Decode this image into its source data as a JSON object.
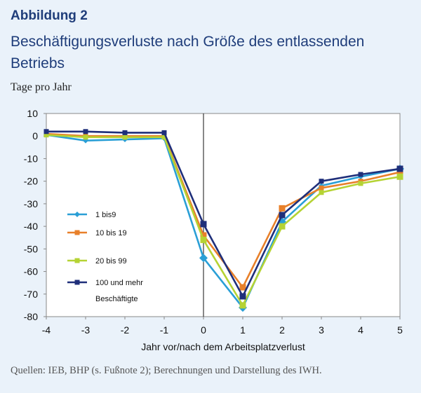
{
  "header": {
    "figure_label": "Abbildung 2",
    "title": "Beschäftigungsverluste nach Größe des entlassenden Betriebs",
    "subtitle": "Tage pro Jahr"
  },
  "footer": {
    "source": "Quellen: IEB, BHP (s. Fußnote 2); Berechnungen und Darstellung des IWH."
  },
  "colors": {
    "page_background": "#eaf2fa",
    "plot_background": "#ffffff",
    "title": "#1f3d7a"
  },
  "chart_data": {
    "type": "line",
    "title": "",
    "xlabel": "Jahr vor/nach dem Arbeitsplatzverlust",
    "ylabel": "",
    "x": [
      -4,
      -3,
      -2,
      -1,
      0,
      1,
      2,
      3,
      4,
      5
    ],
    "xlim": [
      -4,
      5
    ],
    "ylim": [
      -80,
      10
    ],
    "yticks": [
      10,
      0,
      -10,
      -20,
      -30,
      -40,
      -50,
      -60,
      -70,
      -80
    ],
    "grid": false,
    "vertical_reference_line_x": 0,
    "legend_position": "left-center",
    "series": [
      {
        "name": "1 bis9",
        "color": "#2a9fd6",
        "marker": "diamond",
        "values": [
          0.5,
          -2,
          -1.5,
          -1,
          -54,
          -76,
          -38,
          -22,
          -18,
          -14.5
        ]
      },
      {
        "name": "10 bis 19",
        "color": "#e8802a",
        "marker": "square",
        "values": [
          1,
          0,
          0,
          0,
          -44,
          -67,
          -32,
          -23,
          -20,
          -16
        ]
      },
      {
        "name": "20 bis 99",
        "color": "#b5d334",
        "marker": "square",
        "values": [
          0.5,
          -0.5,
          -0.5,
          -0.5,
          -46,
          -75,
          -40,
          -25,
          -21,
          -18
        ]
      },
      {
        "name": "100 und mehr",
        "name_line2": "Beschäftigte",
        "color": "#1f2f7a",
        "marker": "square",
        "values": [
          2,
          2,
          1.5,
          1.5,
          -39,
          -71,
          -35,
          -20,
          -17,
          -14.5
        ]
      }
    ]
  }
}
